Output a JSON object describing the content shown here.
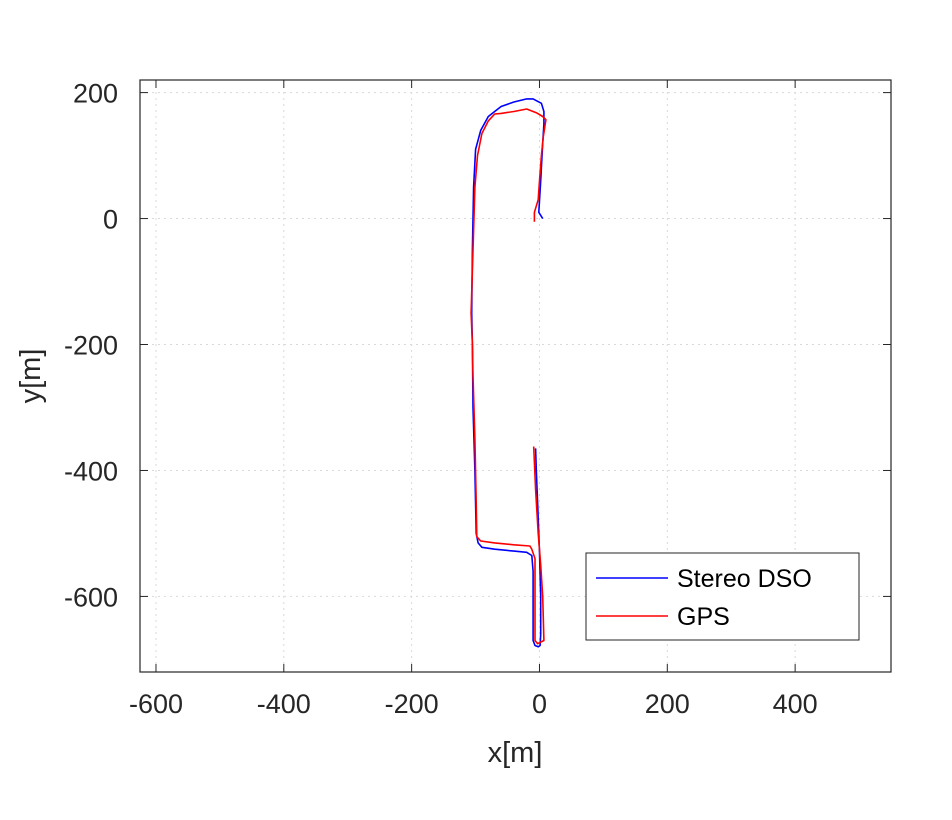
{
  "chart_data": {
    "type": "line",
    "xlabel": "x[m]",
    "ylabel": "y[m]",
    "xlim": [
      -625,
      550
    ],
    "ylim": [
      -720,
      220
    ],
    "xticks": [
      -600,
      -400,
      -200,
      0,
      200,
      400
    ],
    "yticks": [
      200,
      0,
      -200,
      -400,
      -600
    ],
    "xtick_labels": [
      "-600",
      "-400",
      "-200",
      "0",
      "200",
      "400"
    ],
    "ytick_labels": [
      "200",
      "0",
      "-200",
      "-400",
      "-600"
    ],
    "grid": true,
    "legend_position": "bottom-right",
    "series": [
      {
        "name": "Stereo DSO",
        "color": "#0000ff",
        "points": [
          [
            5,
            0
          ],
          [
            -1,
            10
          ],
          [
            2,
            60
          ],
          [
            5,
            120
          ],
          [
            7,
            150
          ],
          [
            7,
            170
          ],
          [
            3,
            183
          ],
          [
            -10,
            190
          ],
          [
            -20,
            190
          ],
          [
            -40,
            185
          ],
          [
            -60,
            178
          ],
          [
            -80,
            162
          ],
          [
            -92,
            140
          ],
          [
            -100,
            110
          ],
          [
            -103,
            50
          ],
          [
            -105,
            -50
          ],
          [
            -106,
            -150
          ],
          [
            -105,
            -200
          ],
          [
            -104,
            -300
          ],
          [
            -101,
            -400
          ],
          [
            -99,
            -500
          ],
          [
            -96,
            -515
          ],
          [
            -90,
            -522
          ],
          [
            -70,
            -525
          ],
          [
            -40,
            -528
          ],
          [
            -20,
            -530
          ],
          [
            -12,
            -535
          ],
          [
            -10,
            -560
          ],
          [
            -10,
            -620
          ],
          [
            -10,
            -670
          ],
          [
            -7,
            -678
          ],
          [
            -2,
            -680
          ],
          [
            1,
            -678
          ],
          [
            2,
            -660
          ],
          [
            2,
            -600
          ],
          [
            0,
            -530
          ],
          [
            -3,
            -450
          ],
          [
            -5,
            -400
          ],
          [
            -6,
            -365
          ]
        ]
      },
      {
        "name": "GPS",
        "color": "#ff0000",
        "points": [
          [
            -8,
            -5
          ],
          [
            -8,
            10
          ],
          [
            -2,
            30
          ],
          [
            0,
            60
          ],
          [
            3,
            100
          ],
          [
            6,
            130
          ],
          [
            10,
            157
          ],
          [
            5,
            162
          ],
          [
            -5,
            168
          ],
          [
            -20,
            174
          ],
          [
            -40,
            170
          ],
          [
            -60,
            167
          ],
          [
            -70,
            166
          ],
          [
            -80,
            155
          ],
          [
            -90,
            135
          ],
          [
            -97,
            100
          ],
          [
            -101,
            50
          ],
          [
            -104,
            -50
          ],
          [
            -107,
            -150
          ],
          [
            -105,
            -200
          ],
          [
            -104,
            -250
          ],
          [
            -101,
            -350
          ],
          [
            -99,
            -450
          ],
          [
            -98,
            -505
          ],
          [
            -92,
            -512
          ],
          [
            -70,
            -515
          ],
          [
            -40,
            -518
          ],
          [
            -15,
            -520
          ],
          [
            -12,
            -525
          ],
          [
            -7,
            -540
          ],
          [
            -7,
            -600
          ],
          [
            -7,
            -670
          ],
          [
            -3,
            -675
          ],
          [
            7,
            -670
          ],
          [
            5,
            -600
          ],
          [
            2,
            -550
          ],
          [
            -2,
            -500
          ],
          [
            -6,
            -430
          ],
          [
            -9,
            -362
          ]
        ]
      }
    ]
  }
}
